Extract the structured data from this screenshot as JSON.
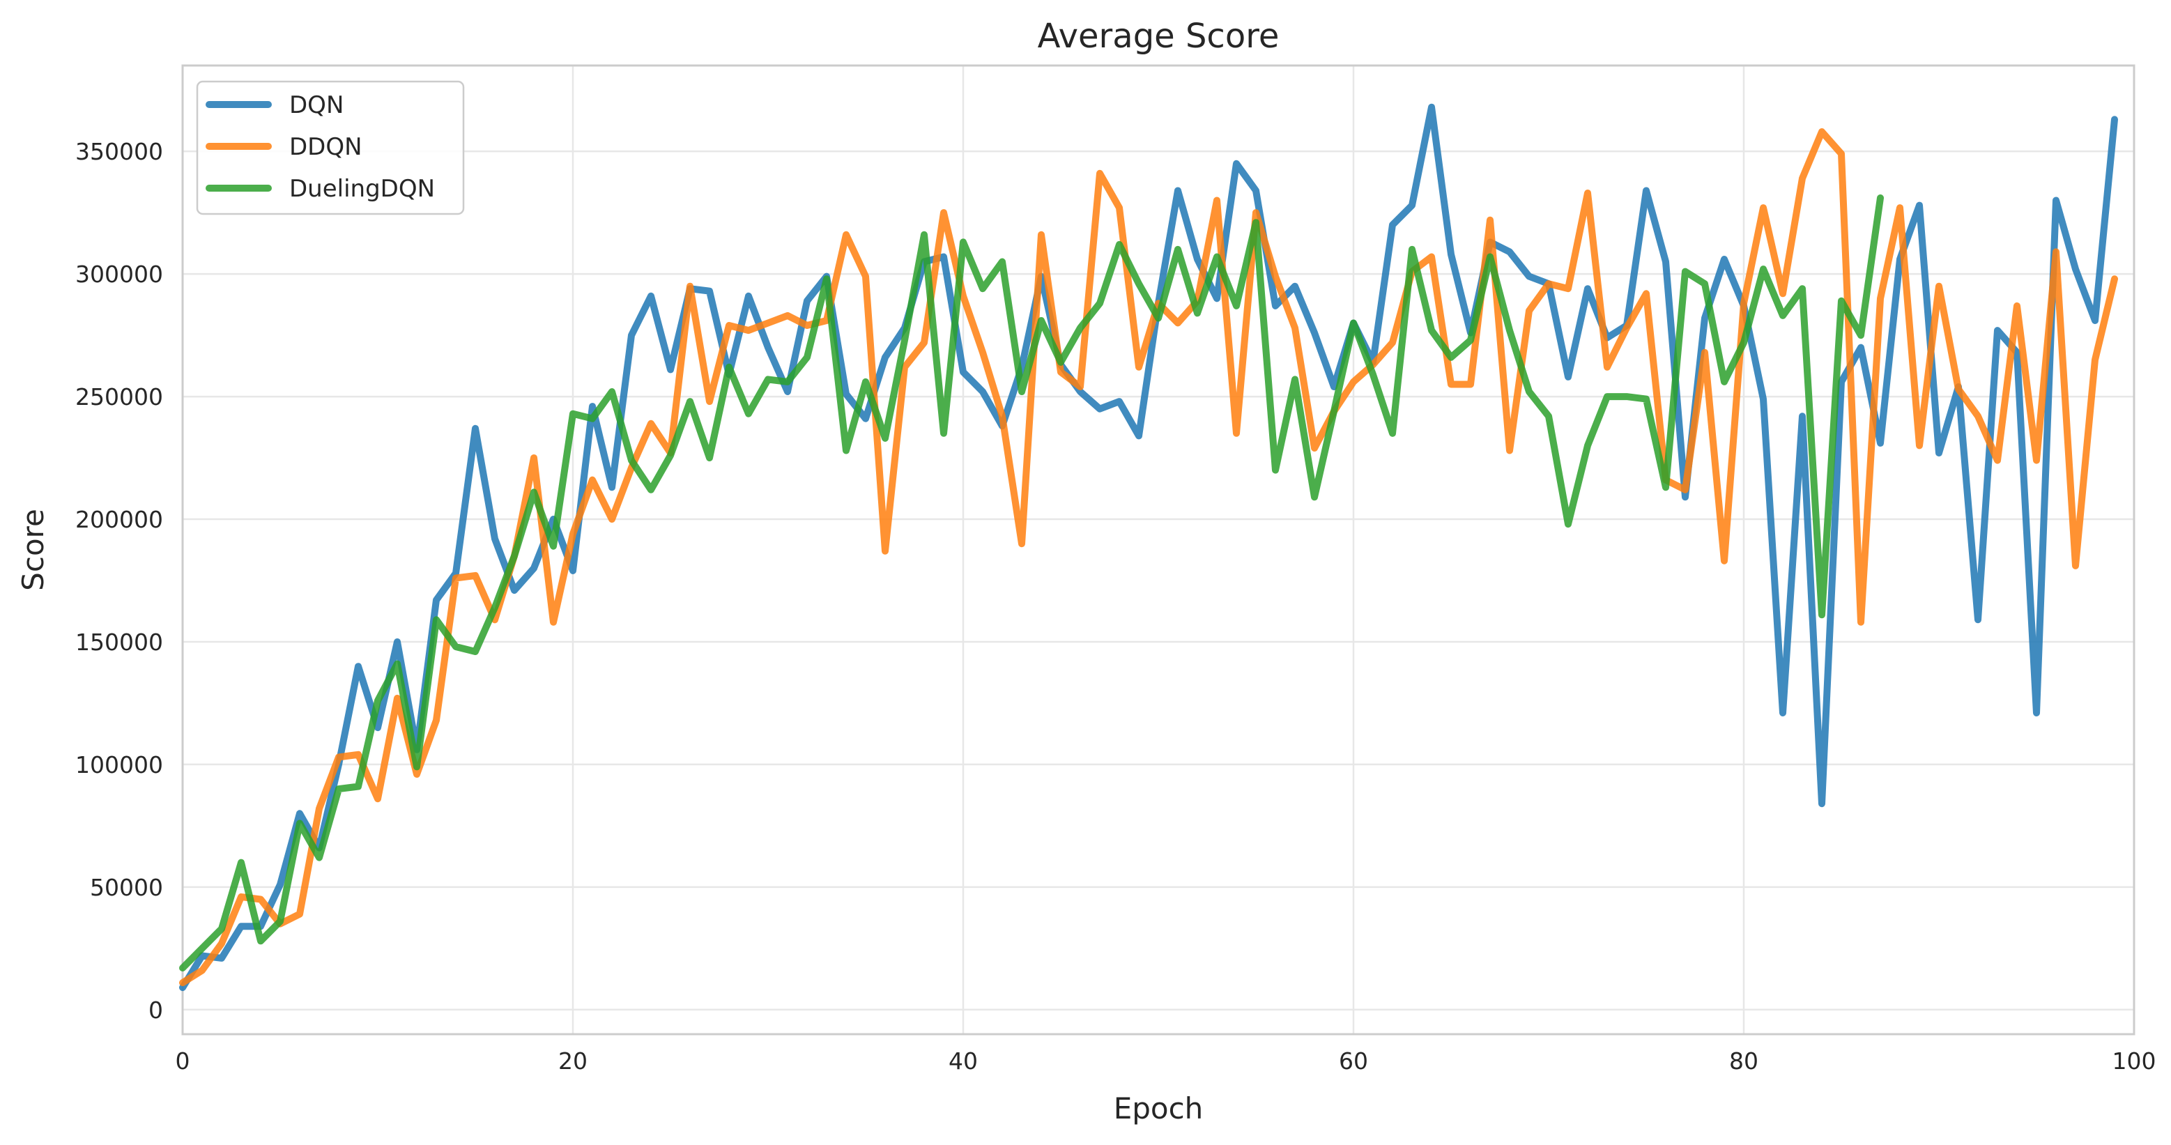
{
  "chart_data": {
    "type": "line",
    "title": "Average Score",
    "xlabel": "Epoch",
    "ylabel": "Score",
    "xlim": [
      0,
      100
    ],
    "ylim": [
      -10000,
      385000
    ],
    "xticks": [
      0,
      20,
      40,
      60,
      80,
      100
    ],
    "yticks": [
      0,
      50000,
      100000,
      150000,
      200000,
      250000,
      300000,
      350000
    ],
    "grid": true,
    "legend_position": "top-left",
    "series": [
      {
        "name": "DQN",
        "color": "#1f77b4",
        "values": [
          9000,
          22000,
          21000,
          34000,
          34000,
          51000,
          80000,
          66000,
          100000,
          140000,
          115000,
          150000,
          106000,
          167000,
          178000,
          237000,
          192000,
          171000,
          180000,
          200000,
          179000,
          246000,
          213000,
          275000,
          291000,
          261000,
          294000,
          293000,
          259000,
          291000,
          270000,
          252000,
          289000,
          299000,
          251000,
          241000,
          266000,
          278000,
          305000,
          307000,
          260000,
          252000,
          238000,
          262000,
          299000,
          263000,
          252000,
          245000,
          248000,
          234000,
          288000,
          334000,
          306000,
          290000,
          345000,
          334000,
          287000,
          295000,
          276000,
          254000,
          280000,
          264000,
          320000,
          328000,
          368000,
          308000,
          276000,
          313000,
          309000,
          299000,
          296000,
          258000,
          294000,
          274000,
          279000,
          334000,
          305000,
          209000,
          282000,
          306000,
          287000,
          249000,
          121000,
          242000,
          84000,
          256000,
          270000,
          231000,
          306000,
          328000,
          227000,
          254000,
          159000,
          277000,
          268000,
          121000,
          330000,
          302000,
          281000,
          363000
        ]
      },
      {
        "name": "DDQN",
        "color": "#ff7f0e",
        "values": [
          11000,
          16000,
          27000,
          46000,
          45000,
          35000,
          39000,
          82000,
          103000,
          104000,
          86000,
          127000,
          96000,
          118000,
          176000,
          177000,
          159000,
          185000,
          225000,
          158000,
          194000,
          216000,
          200000,
          221000,
          239000,
          227000,
          295000,
          248000,
          279000,
          277000,
          280000,
          283000,
          279000,
          281000,
          316000,
          299000,
          187000,
          262000,
          272000,
          325000,
          291000,
          268000,
          242000,
          190000,
          316000,
          260000,
          254000,
          341000,
          327000,
          262000,
          288000,
          280000,
          289000,
          330000,
          235000,
          325000,
          299000,
          278000,
          229000,
          244000,
          256000,
          263000,
          272000,
          301000,
          307000,
          255000,
          255000,
          322000,
          228000,
          285000,
          296000,
          294000,
          333000,
          262000,
          278000,
          292000,
          216000,
          212000,
          268000,
          183000,
          288000,
          327000,
          292000,
          339000,
          358000,
          349000,
          158000,
          290000,
          327000,
          230000,
          295000,
          253000,
          242000,
          224000,
          287000,
          224000,
          309000,
          181000,
          265000,
          298000
        ]
      },
      {
        "name": "DuelingDQN",
        "color": "#2ca02c",
        "values": [
          17000,
          25000,
          33000,
          60000,
          28000,
          36000,
          76000,
          62000,
          90000,
          91000,
          126000,
          141000,
          99000,
          159000,
          148000,
          146000,
          164000,
          185000,
          211000,
          189000,
          243000,
          241000,
          252000,
          224000,
          212000,
          226000,
          248000,
          225000,
          262000,
          243000,
          257000,
          256000,
          266000,
          298000,
          228000,
          256000,
          233000,
          273000,
          316000,
          235000,
          313000,
          294000,
          305000,
          252000,
          281000,
          264000,
          278000,
          288000,
          312000,
          296000,
          282000,
          310000,
          284000,
          307000,
          287000,
          321000,
          220000,
          257000,
          209000,
          244000,
          280000,
          259000,
          235000,
          310000,
          277000,
          266000,
          273000,
          307000,
          277000,
          252000,
          242000,
          198000,
          230000,
          250000,
          250000,
          249000,
          213000,
          301000,
          296000,
          256000,
          272000,
          302000,
          283000,
          294000,
          161000,
          289000,
          275000,
          331000
        ]
      }
    ]
  }
}
